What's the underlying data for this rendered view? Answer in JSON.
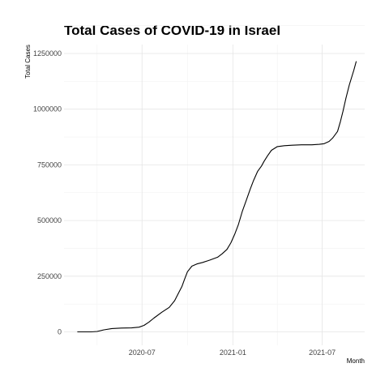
{
  "chart_data": {
    "type": "line",
    "title": "Total Cases of COVID-19 in Israel",
    "xlabel": "Month",
    "ylabel": "Total Cases",
    "x_type": "date",
    "xlim": [
      "2020-01-25",
      "2021-09-25"
    ],
    "ylim": [
      -60000,
      1290000
    ],
    "x_ticks": [
      "2020-07-01",
      "2021-01-01",
      "2021-07-01"
    ],
    "x_tick_labels": [
      "2020-07",
      "2021-01",
      "2021-07"
    ],
    "y_ticks": [
      0,
      250000,
      500000,
      750000,
      1000000,
      1250000
    ],
    "y_tick_labels": [
      "0",
      "250000",
      "500000",
      "750000",
      "1000000",
      "1250000"
    ],
    "grid": true,
    "legend": "none",
    "series": [
      {
        "x": [
          "2020-02-21",
          "2020-03-10",
          "2020-03-20",
          "2020-04-01",
          "2020-04-15",
          "2020-05-01",
          "2020-05-20",
          "2020-06-10",
          "2020-06-25",
          "2020-07-05",
          "2020-07-15",
          "2020-07-25",
          "2020-08-10",
          "2020-08-25",
          "2020-09-05",
          "2020-09-12",
          "2020-09-20",
          "2020-09-25",
          "2020-10-01",
          "2020-10-10",
          "2020-10-20",
          "2020-11-01",
          "2020-11-15",
          "2020-12-01",
          "2020-12-10",
          "2020-12-20",
          "2020-12-28",
          "2021-01-05",
          "2021-01-12",
          "2021-01-20",
          "2021-01-28",
          "2021-02-05",
          "2021-02-12",
          "2021-02-20",
          "2021-02-28",
          "2021-03-05",
          "2021-03-12",
          "2021-03-20",
          "2021-04-01",
          "2021-04-15",
          "2021-05-01",
          "2021-05-20",
          "2021-06-10",
          "2021-06-25",
          "2021-07-05",
          "2021-07-15",
          "2021-07-22",
          "2021-08-01",
          "2021-08-07",
          "2021-08-12",
          "2021-08-18",
          "2021-08-25",
          "2021-09-03",
          "2021-09-08"
        ],
        "y": [
          0,
          0,
          0,
          2000,
          9000,
          15000,
          17000,
          18000,
          21000,
          29000,
          44000,
          62000,
          88000,
          110000,
          140000,
          170000,
          205000,
          235000,
          270000,
          295000,
          305000,
          312000,
          322000,
          335000,
          350000,
          370000,
          400000,
          440000,
          480000,
          540000,
          590000,
          640000,
          680000,
          720000,
          745000,
          765000,
          790000,
          815000,
          832000,
          836000,
          838000,
          840000,
          840000,
          842000,
          845000,
          855000,
          870000,
          900000,
          945000,
          990000,
          1050000,
          1110000,
          1175000,
          1215000
        ]
      }
    ]
  }
}
